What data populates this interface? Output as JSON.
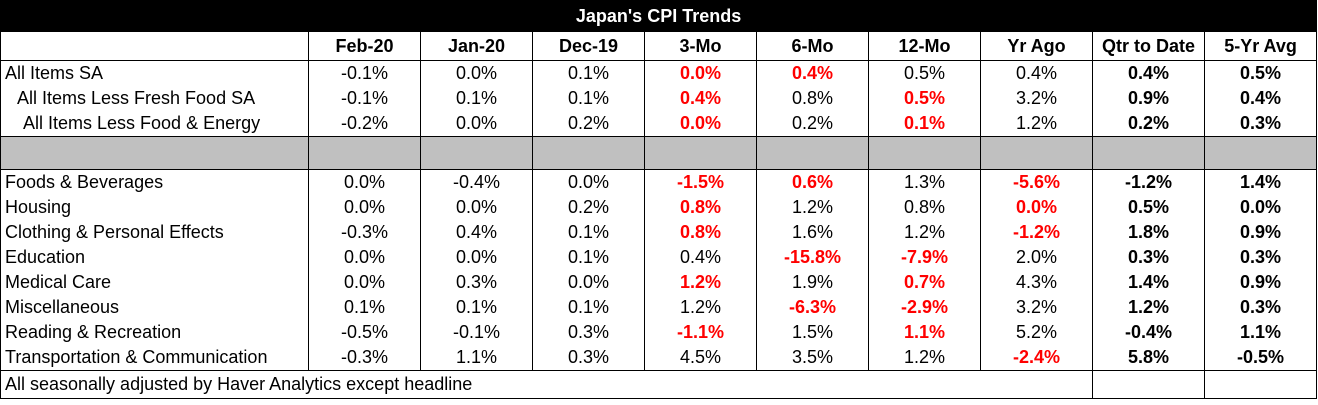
{
  "title": "Japan's CPI Trends",
  "columns": [
    "Feb-20",
    "Jan-20",
    "Dec-19",
    "3-Mo",
    "6-Mo",
    "12-Mo",
    "Yr Ago",
    "Qtr to Date",
    "5-Yr Avg"
  ],
  "highlight_color": "#ff0000",
  "group1": [
    {
      "label": "All Items SA",
      "values": [
        "-0.1%",
        "0.0%",
        "0.1%",
        "0.0%",
        "0.4%",
        "0.5%",
        "0.4%",
        "0.4%",
        "0.5%"
      ],
      "red": [
        3,
        4
      ]
    },
    {
      "label": "All Items Less Fresh Food SA",
      "values": [
        "-0.1%",
        "0.1%",
        "0.1%",
        "0.4%",
        "0.8%",
        "0.5%",
        "3.2%",
        "0.9%",
        "0.4%"
      ],
      "red": [
        3,
        5
      ]
    },
    {
      "label": "All Items Less Food & Energy",
      "values": [
        "-0.2%",
        "0.0%",
        "0.2%",
        "0.0%",
        "0.2%",
        "0.1%",
        "1.2%",
        "0.2%",
        "0.3%"
      ],
      "red": [
        3,
        5
      ]
    }
  ],
  "group2": [
    {
      "label": "Foods & Beverages",
      "values": [
        "0.0%",
        "-0.4%",
        "0.0%",
        "-1.5%",
        "0.6%",
        "1.3%",
        "-5.6%",
        "-1.2%",
        "1.4%"
      ],
      "red": [
        3,
        4,
        6
      ]
    },
    {
      "label": "Housing",
      "values": [
        "0.0%",
        "0.0%",
        "0.2%",
        "0.8%",
        "1.2%",
        "0.8%",
        "0.0%",
        "0.5%",
        "0.0%"
      ],
      "red": [
        3,
        6
      ]
    },
    {
      "label": "Clothing & Personal Effects",
      "values": [
        "-0.3%",
        "0.4%",
        "0.1%",
        "0.8%",
        "1.6%",
        "1.2%",
        "-1.2%",
        "1.8%",
        "0.9%"
      ],
      "red": [
        3,
        6
      ]
    },
    {
      "label": "Education",
      "values": [
        "0.0%",
        "0.0%",
        "0.1%",
        "0.4%",
        "-15.8%",
        "-7.9%",
        "2.0%",
        "0.3%",
        "0.3%"
      ],
      "red": [
        4,
        5
      ]
    },
    {
      "label": "Medical Care",
      "values": [
        "0.0%",
        "0.3%",
        "0.0%",
        "1.2%",
        "1.9%",
        "0.7%",
        "4.3%",
        "1.4%",
        "0.9%"
      ],
      "red": [
        3,
        5
      ]
    },
    {
      "label": "Miscellaneous",
      "values": [
        "0.1%",
        "0.1%",
        "0.1%",
        "1.2%",
        "-6.3%",
        "-2.9%",
        "3.2%",
        "1.2%",
        "0.3%"
      ],
      "red": [
        4,
        5
      ]
    },
    {
      "label": "Reading & Recreation",
      "values": [
        "-0.5%",
        "-0.1%",
        "0.3%",
        "-1.1%",
        "1.5%",
        "1.1%",
        "5.2%",
        "-0.4%",
        "1.1%"
      ],
      "red": [
        3,
        5
      ]
    },
    {
      "label": "Transportation & Communication",
      "values": [
        "-0.3%",
        "1.1%",
        "0.3%",
        "4.5%",
        "3.5%",
        "1.2%",
        "-2.4%",
        "5.8%",
        "-0.5%"
      ],
      "red": [
        6
      ]
    }
  ],
  "footnote": "All seasonally adjusted by Haver Analytics except headline"
}
